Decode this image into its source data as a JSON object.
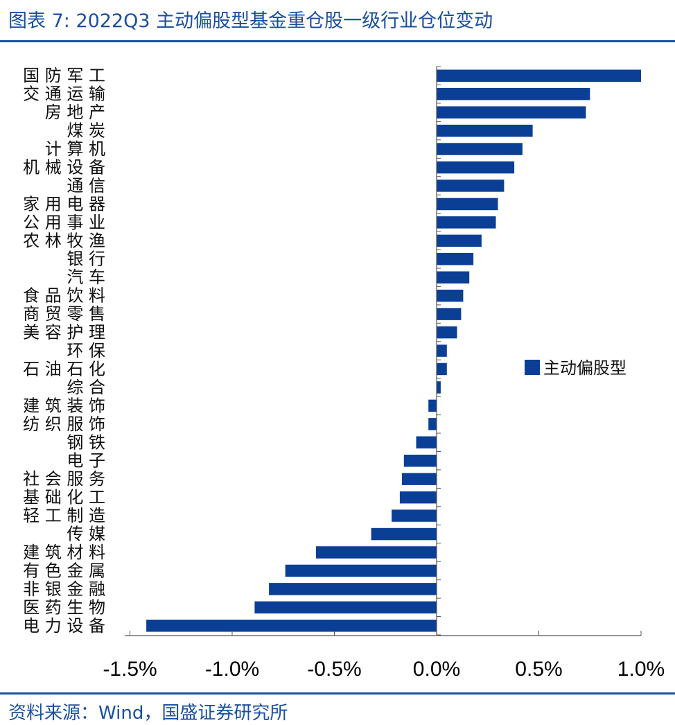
{
  "header": {
    "title": "图表 7:  2022Q3 主动偏股型基金重仓股一级行业仓位变动"
  },
  "footer": {
    "source": "资料来源：Wind，国盛证券研究所"
  },
  "colors": {
    "bar": "#0b3f96",
    "accent": "#1a4fa0",
    "axis": "#555555"
  },
  "chart_data": {
    "type": "bar",
    "orientation": "horizontal",
    "title": "2022Q3 主动偏股型基金重仓股一级行业仓位变动",
    "categories": [
      "国防军工",
      "交通运输",
      "房地产",
      "煤炭",
      "计算机",
      "机械设备",
      "通信",
      "家用电器",
      "公用事业",
      "农林牧渔",
      "银行",
      "汽车",
      "食品饮料",
      "商贸零售",
      "美容护理",
      "环保",
      "石油石化",
      "综合",
      "建筑装饰",
      "纺织服饰",
      "钢铁",
      "电子",
      "社会服务",
      "基础化工",
      "轻工制造",
      "传媒",
      "建筑材料",
      "有色金属",
      "非银金融",
      "医药生物",
      "电力设备"
    ],
    "category_text": [
      "国 防 军 工",
      "交 通 运 输",
      "房 地 产",
      "煤 炭",
      "计 算 机",
      "机 械 设 备",
      "通 信",
      "家 用 电 器",
      "公 用 事 业",
      "农 林 牧 渔",
      "银 行",
      "汽 车",
      "食 品 饮 料",
      "商 贸 零 售",
      "美 容 护 理",
      "环 保",
      "石 油 石 化",
      "综 合",
      "建 筑 装 饰",
      "纺 织 服 饰",
      "钢 铁",
      "电 子",
      "社 会 服 务",
      "基 础 化 工",
      "轻 工 制 造",
      "传 媒",
      "建 筑 材 料",
      "有 色 金 属",
      "非 银 金 融",
      "医 药 生 物",
      "电 力 设 备"
    ],
    "series": [
      {
        "name": "主动偏股型",
        "values": [
          1.0,
          0.75,
          0.73,
          0.47,
          0.42,
          0.38,
          0.33,
          0.3,
          0.29,
          0.22,
          0.18,
          0.16,
          0.13,
          0.12,
          0.1,
          0.05,
          0.05,
          0.02,
          -0.04,
          -0.04,
          -0.1,
          -0.16,
          -0.17,
          -0.18,
          -0.22,
          -0.32,
          -0.59,
          -0.74,
          -0.82,
          -0.89,
          -1.42
        ]
      }
    ],
    "xlim": [
      -1.5,
      1.0
    ],
    "xticks": [
      -1.5,
      -1.0,
      -0.5,
      0.0,
      0.5,
      1.0
    ],
    "xtick_labels": [
      "-1.5%",
      "-1.0%",
      "-0.5%",
      "0.0%",
      "0.5%",
      "1.0%"
    ],
    "xlabel": "",
    "ylabel": "",
    "legend": {
      "position": "right",
      "label": "主动偏股型"
    },
    "grid": false
  }
}
